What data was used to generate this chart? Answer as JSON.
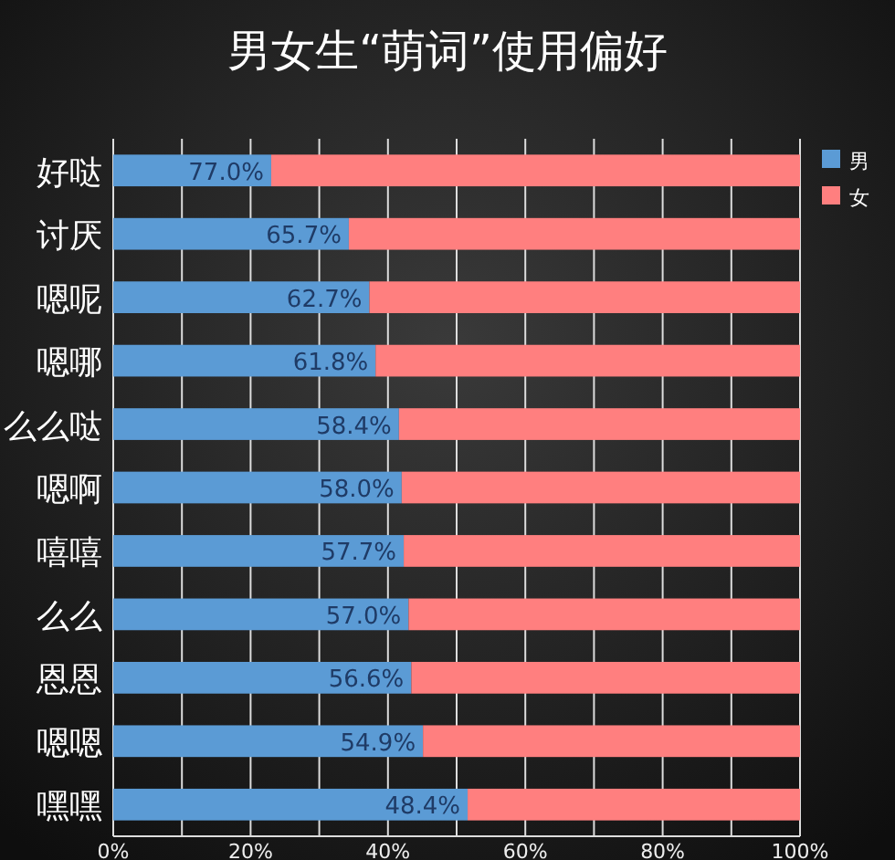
{
  "chart_data": {
    "type": "bar",
    "orientation": "horizontal",
    "stacked": true,
    "title": "男女生“萌词”使用偏好",
    "categories": [
      "好哒",
      "讨厌",
      "嗯呢",
      "嗯哪",
      "么么哒",
      "嗯啊",
      "嘻嘻",
      "么么",
      "恩恩",
      "嗯嗯",
      "嘿嘿"
    ],
    "series": [
      {
        "name": "男",
        "color": "#5b9bd5",
        "values": [
          23.0,
          34.3,
          37.3,
          38.2,
          41.6,
          42.0,
          42.3,
          43.0,
          43.4,
          45.1,
          51.6
        ]
      },
      {
        "name": "女",
        "color": "#ff7f7f",
        "values": [
          77.0,
          65.7,
          62.7,
          61.8,
          58.4,
          58.0,
          57.7,
          57.0,
          56.6,
          54.9,
          48.4
        ],
        "value_labels": [
          "77.0%",
          "65.7%",
          "62.7%",
          "61.8%",
          "58.4%",
          "58.0%",
          "57.7%",
          "57.0%",
          "56.6%",
          "54.9%",
          "48.4%"
        ]
      }
    ],
    "xlim": [
      0,
      100
    ],
    "xticks": [
      {
        "value": 0,
        "label": "0%"
      },
      {
        "value": 10,
        "label": null
      },
      {
        "value": 20,
        "label": "20%"
      },
      {
        "value": 30,
        "label": null
      },
      {
        "value": 40,
        "label": "40%"
      },
      {
        "value": 50,
        "label": null
      },
      {
        "value": 60,
        "label": "60%"
      },
      {
        "value": 70,
        "label": null
      },
      {
        "value": 80,
        "label": "80%"
      },
      {
        "value": 90,
        "label": null
      },
      {
        "value": 100,
        "label": "100%"
      }
    ],
    "grid": "x",
    "legend": "right"
  }
}
